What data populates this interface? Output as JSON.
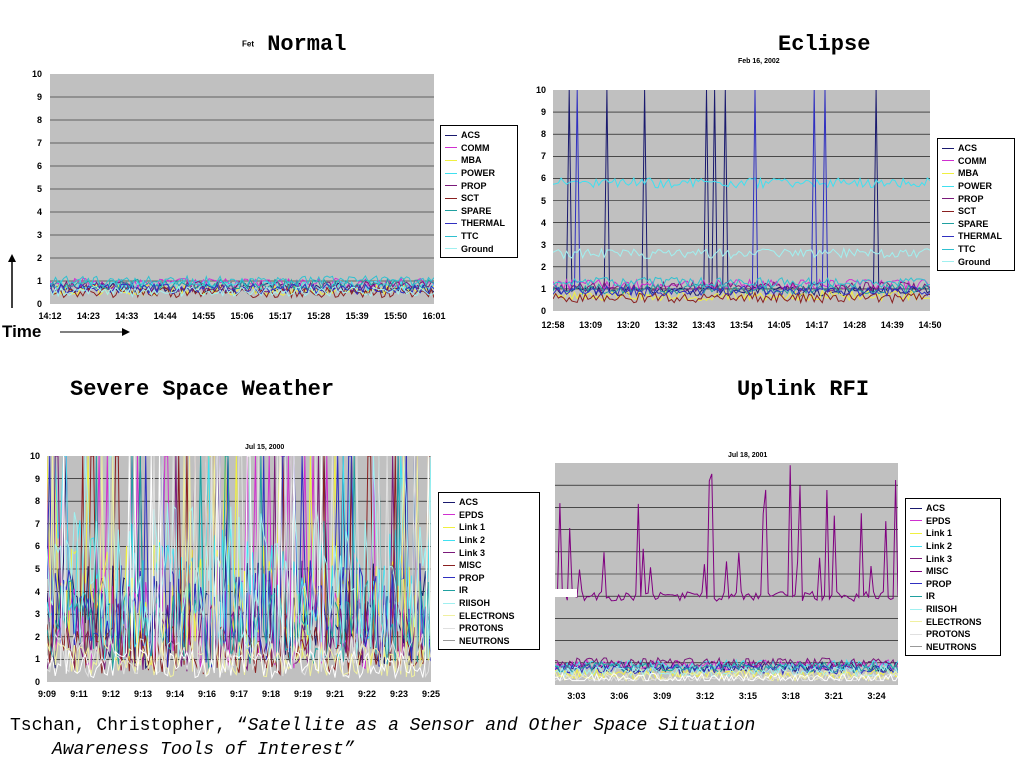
{
  "titles": {
    "normal": "Normal",
    "normal_prefix": "Fet",
    "eclipse": "Eclipse",
    "eclipse_date": "Feb 16, 2002",
    "weather": "Severe Space Weather",
    "weather_date": "Jul 15, 2000",
    "rfi": "Uplink RFI",
    "rfi_date": "Jul 18, 2001"
  },
  "time_label": "Time",
  "citation": {
    "author": "Tschan, Christopher, “",
    "title_line1": "Satellite as a Sensor and Other Space Situation",
    "title_line2": "Awareness Tools of Interest”"
  },
  "colors": {
    "plot_bg": "#c0c0c0",
    "gridline": "#000000"
  },
  "chart_data": [
    {
      "type": "line",
      "title": "Normal",
      "ylim": [
        0,
        10
      ],
      "yticks": [
        "0",
        "1",
        "2",
        "3",
        "4",
        "5",
        "6",
        "7",
        "8",
        "9",
        "10"
      ],
      "x": [
        "14:12",
        "14:23",
        "14:33",
        "14:44",
        "14:55",
        "15:06",
        "15:17",
        "15:28",
        "15:39",
        "15:50",
        "16:01"
      ],
      "grid": true,
      "legend_position": "right",
      "series": [
        {
          "name": "ACS",
          "color": "#1a1a6e",
          "level": 0.7
        },
        {
          "name": "COMM",
          "color": "#d030d0",
          "level": 0.9
        },
        {
          "name": "MBA",
          "color": "#f0f040",
          "level": 0.6
        },
        {
          "name": "POWER",
          "color": "#40e0f0",
          "level": 0.8
        },
        {
          "name": "PROP",
          "color": "#7a1a7a",
          "level": 0.75
        },
        {
          "name": "SCT",
          "color": "#8a2020",
          "level": 0.5
        },
        {
          "name": "SPARE",
          "color": "#20a0a0",
          "level": 0.85
        },
        {
          "name": "THERMAL",
          "color": "#3030c0",
          "level": 0.65
        },
        {
          "name": "TTC",
          "color": "#30c0d0",
          "level": 1.0
        },
        {
          "name": "Ground",
          "color": "#a0f0f0",
          "level": 0.55
        }
      ]
    },
    {
      "type": "line",
      "title": "Eclipse",
      "ylim": [
        0,
        10
      ],
      "yticks": [
        "0",
        "1",
        "2",
        "3",
        "4",
        "5",
        "6",
        "7",
        "8",
        "9",
        "10"
      ],
      "x": [
        "12:58",
        "13:09",
        "13:20",
        "13:32",
        "13:43",
        "13:54",
        "14:05",
        "14:17",
        "14:28",
        "14:39",
        "14:50"
      ],
      "grid": true,
      "legend_position": "right",
      "series": [
        {
          "name": "ACS",
          "color": "#1a1a6e",
          "level": 0.9
        },
        {
          "name": "COMM",
          "color": "#d030d0",
          "level": 1.2
        },
        {
          "name": "MBA",
          "color": "#f0f040",
          "level": 0.7
        },
        {
          "name": "POWER",
          "color": "#40e0f0",
          "level": 5.8
        },
        {
          "name": "PROP",
          "color": "#7a1a7a",
          "level": 1.1
        },
        {
          "name": "SCT",
          "color": "#8a2020",
          "level": 0.6
        },
        {
          "name": "SPARE",
          "color": "#20a0a0",
          "level": 1.0
        },
        {
          "name": "THERMAL",
          "color": "#3030c0",
          "level": 0.9
        },
        {
          "name": "TTC",
          "color": "#30c0d0",
          "level": 1.3
        },
        {
          "name": "Ground",
          "color": "#a0f0f0",
          "level": 2.6
        }
      ]
    },
    {
      "type": "line",
      "title": "Jul 15, 2000",
      "ylim": [
        0,
        10
      ],
      "yticks": [
        "0",
        "1",
        "2",
        "3",
        "4",
        "5",
        "6",
        "7",
        "8",
        "9",
        "10"
      ],
      "x": [
        "9:09",
        "9:11",
        "9:12",
        "9:13",
        "9:14",
        "9:16",
        "9:17",
        "9:18",
        "9:19",
        "9:21",
        "9:22",
        "9:23",
        "9:25"
      ],
      "grid": true,
      "legend_position": "right",
      "series": [
        {
          "name": "ACS",
          "color": "#1a1a6e",
          "level": 3.0
        },
        {
          "name": "EPDS",
          "color": "#d030d0",
          "level": 2.5
        },
        {
          "name": "Link 1",
          "color": "#f0f040",
          "level": 3.5
        },
        {
          "name": "Link 2",
          "color": "#40e0f0",
          "level": 4.0
        },
        {
          "name": "Link 3",
          "color": "#7a1a7a",
          "level": 2.0
        },
        {
          "name": "MISC",
          "color": "#8a2020",
          "level": 1.5
        },
        {
          "name": "PROP",
          "color": "#3030c0",
          "level": 3.0
        },
        {
          "name": "IR",
          "color": "#20a0a0",
          "level": 2.5
        },
        {
          "name": "RIISOH",
          "color": "#a0f0f0",
          "level": 4.5
        },
        {
          "name": "ELECTRONS",
          "color": "#f0f0a0",
          "level": 1.0
        },
        {
          "name": "PROTONS",
          "color": "#e0e0e0",
          "level": 1.2
        },
        {
          "name": "NEUTRONS",
          "color": "#ffffff",
          "level": 0.8
        }
      ]
    },
    {
      "type": "line",
      "title": "Jul 18, 2001",
      "ylim": [
        0,
        10
      ],
      "yticks": [],
      "x": [
        "3:03",
        "3:06",
        "3:09",
        "3:12",
        "3:15",
        "3:18",
        "3:21",
        "3:24"
      ],
      "grid": true,
      "legend_position": "right",
      "series": [
        {
          "name": "ACS",
          "color": "#1a1a6e",
          "level": 0.8
        },
        {
          "name": "EPDS",
          "color": "#d030d0",
          "level": 0.9
        },
        {
          "name": "Link 1",
          "color": "#f0f040",
          "level": 0.5
        },
        {
          "name": "Link 2",
          "color": "#40e0f0",
          "level": 0.9
        },
        {
          "name": "Link 3",
          "color": "#7a1a7a",
          "level": 1.0
        },
        {
          "name": "MISC",
          "color": "#800080",
          "level": 4.0
        },
        {
          "name": "PROP",
          "color": "#3030c0",
          "level": 0.7
        },
        {
          "name": "IR",
          "color": "#20a0a0",
          "level": 0.8
        },
        {
          "name": "RIISOH",
          "color": "#a0f0f0",
          "level": 0.6
        },
        {
          "name": "ELECTRONS",
          "color": "#f0f0a0",
          "level": 0.4
        },
        {
          "name": "PROTONS",
          "color": "#e0e0e0",
          "level": 0.3
        },
        {
          "name": "NEUTRONS",
          "color": "#ffffff",
          "level": 0.3
        }
      ]
    }
  ]
}
